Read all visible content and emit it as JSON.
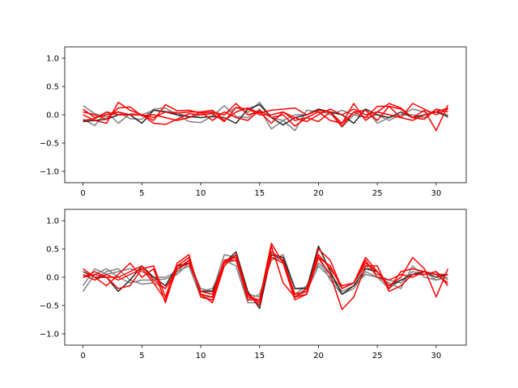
{
  "colors": {
    "gray": "#808080",
    "dark": "#262626",
    "red": "#ff0000"
  },
  "chart_data": [
    {
      "type": "line",
      "xlim": [
        -1.55,
        32.55
      ],
      "ylim": [
        -1.2,
        1.2
      ],
      "xticks": [
        0,
        5,
        10,
        15,
        20,
        25,
        30
      ],
      "xtick_labels": [
        "0",
        "5",
        "10",
        "15",
        "20",
        "25",
        "30"
      ],
      "yticks": [
        -1.0,
        -0.5,
        0.0,
        0.5,
        1.0
      ],
      "ytick_labels": [
        "−1.0",
        "−0.5",
        "0.0",
        "0.5",
        "1.0"
      ],
      "grid": false,
      "x": [
        0,
        1,
        2,
        3,
        4,
        5,
        6,
        7,
        8,
        9,
        10,
        11,
        12,
        13,
        14,
        15,
        16,
        17,
        18,
        19,
        20,
        21,
        22,
        23,
        24,
        25,
        26,
        27,
        28,
        29,
        30,
        31
      ],
      "series": [
        {
          "color": "gray",
          "values": [
            0.16,
            0.02,
            -0.04,
            0.05,
            -0.07,
            -0.08,
            0.1,
            0.12,
            0.0,
            -0.12,
            -0.14,
            -0.02,
            0.16,
            -0.03,
            -0.05,
            0.1,
            -0.25,
            -0.1,
            -0.28,
            0.08,
            0.05,
            0.03,
            -0.22,
            0.0,
            0.1,
            -0.15,
            -0.05,
            0.0,
            0.1,
            0.05,
            0.05,
            0.0
          ]
        },
        {
          "color": "gray",
          "values": [
            -0.08,
            -0.19,
            0.05,
            -0.15,
            0.02,
            0.0,
            0.08,
            0.06,
            0.04,
            -0.05,
            0.0,
            0.03,
            0.0,
            0.13,
            0.04,
            0.22,
            -0.05,
            -0.1,
            0.0,
            0.0,
            0.1,
            0.0,
            0.08,
            0.0,
            -0.05,
            0.0,
            -0.1,
            0.0,
            0.0,
            -0.05,
            0.1,
            -0.05
          ]
        },
        {
          "color": "dark",
          "values": [
            -0.12,
            -0.1,
            -0.08,
            0.0,
            0.0,
            -0.15,
            0.08,
            0.05,
            0.0,
            -0.03,
            -0.05,
            -0.03,
            -0.05,
            -0.15,
            0.1,
            0.18,
            -0.05,
            -0.18,
            -0.05,
            0.0,
            0.1,
            0.05,
            0.0,
            -0.15,
            0.1,
            0.0,
            -0.05,
            0.05,
            -0.05,
            0.0,
            0.05,
            -0.03
          ]
        },
        {
          "color": "red",
          "values": [
            0.1,
            -0.05,
            0.0,
            0.05,
            0.0,
            0.0,
            -0.05,
            0.05,
            0.03,
            0.05,
            0.05,
            0.08,
            -0.1,
            0.05,
            0.12,
            0.03,
            0.08,
            0.1,
            0.12,
            0.0,
            0.08,
            0.05,
            -0.15,
            0.2,
            -0.1,
            0.05,
            0.2,
            0.12,
            -0.05,
            0.08,
            -0.28,
            0.17
          ]
        },
        {
          "color": "red",
          "values": [
            0.0,
            -0.1,
            -0.15,
            0.22,
            0.08,
            0.0,
            -0.1,
            0.18,
            0.07,
            0.08,
            0.03,
            0.05,
            0.0,
            0.2,
            0.0,
            0.05,
            -0.15,
            0.05,
            -0.05,
            -0.12,
            0.0,
            0.1,
            0.0,
            0.1,
            0.0,
            0.05,
            0.0,
            -0.05,
            0.2,
            0.1,
            0.0,
            0.1
          ]
        },
        {
          "color": "red",
          "values": [
            0.05,
            0.0,
            -0.08,
            0.12,
            0.14,
            -0.02,
            0.0,
            -0.05,
            -0.1,
            -0.05,
            0.05,
            -0.1,
            0.05,
            -0.05,
            -0.1,
            0.08,
            -0.05,
            0.0,
            -0.2,
            -0.05,
            -0.12,
            0.05,
            -0.2,
            0.05,
            0.08,
            -0.1,
            0.15,
            0.1,
            -0.05,
            -0.08,
            0.1,
            0.05
          ]
        },
        {
          "color": "red",
          "values": [
            -0.1,
            -0.07,
            0.05,
            0.0,
            0.0,
            0.0,
            -0.15,
            -0.17,
            -0.08,
            0.02,
            0.0,
            0.02,
            -0.12,
            0.13,
            0.1,
            0.0,
            0.0,
            0.05,
            -0.1,
            -0.05,
            0.05,
            -0.1,
            -0.15,
            0.05,
            -0.05,
            0.15,
            0.15,
            -0.05,
            -0.1,
            0.0,
            0.05,
            0.12
          ]
        }
      ]
    },
    {
      "type": "line",
      "xlim": [
        -1.55,
        32.55
      ],
      "ylim": [
        -1.2,
        1.2
      ],
      "xticks": [
        0,
        5,
        10,
        15,
        20,
        25,
        30
      ],
      "xtick_labels": [
        "0",
        "5",
        "10",
        "15",
        "20",
        "25",
        "30"
      ],
      "yticks": [
        -1.0,
        -0.5,
        0.0,
        0.5,
        1.0
      ],
      "ytick_labels": [
        "−1.0",
        "−0.5",
        "0.0",
        "0.5",
        "1.0"
      ],
      "grid": false,
      "x": [
        0,
        1,
        2,
        3,
        4,
        5,
        6,
        7,
        8,
        9,
        10,
        11,
        12,
        13,
        14,
        15,
        16,
        17,
        18,
        19,
        20,
        21,
        22,
        23,
        24,
        25,
        26,
        27,
        28,
        29,
        30,
        31
      ],
      "series": [
        {
          "color": "gray",
          "values": [
            -0.25,
            0.05,
            0.15,
            0.0,
            -0.1,
            -0.05,
            -0.05,
            -0.03,
            0.05,
            0.25,
            -0.25,
            -0.2,
            0.25,
            0.3,
            -0.4,
            -0.3,
            0.3,
            0.4,
            -0.2,
            -0.18,
            0.35,
            -0.05,
            -0.3,
            -0.2,
            0.1,
            0.0,
            -0.1,
            -0.2,
            0.2,
            0.0,
            -0.05,
            0.0
          ]
        },
        {
          "color": "gray",
          "values": [
            -0.15,
            0.15,
            0.05,
            0.1,
            0.15,
            0.1,
            0.0,
            0.0,
            0.1,
            0.3,
            -0.2,
            -0.25,
            0.4,
            0.35,
            -0.3,
            -0.35,
            0.35,
            0.3,
            -0.3,
            -0.15,
            0.25,
            0.05,
            -0.2,
            -0.1,
            0.2,
            0.05,
            -0.05,
            -0.1,
            0.1,
            0.05,
            0.1,
            -0.05
          ]
        },
        {
          "color": "gray",
          "values": [
            0.05,
            -0.05,
            0.1,
            0.15,
            -0.05,
            -0.12,
            -0.1,
            -0.2,
            0.1,
            0.2,
            -0.35,
            -0.35,
            0.3,
            0.2,
            -0.45,
            -0.45,
            0.4,
            0.3,
            -0.35,
            -0.25,
            0.2,
            0.0,
            -0.25,
            -0.15,
            0.05,
            0.0,
            -0.2,
            -0.05,
            0.05,
            0.1,
            -0.05,
            0.05
          ]
        },
        {
          "color": "dark",
          "values": [
            0.1,
            0.0,
            0.0,
            -0.25,
            -0.05,
            0.2,
            0.0,
            -0.15,
            0.2,
            0.25,
            -0.25,
            -0.25,
            0.25,
            0.45,
            -0.25,
            -0.55,
            0.4,
            0.35,
            -0.2,
            -0.2,
            0.55,
            0.1,
            -0.3,
            -0.15,
            0.15,
            0.1,
            -0.15,
            -0.05,
            0.05,
            0.1,
            0.0,
            0.05
          ]
        },
        {
          "color": "red",
          "values": [
            0.15,
            0.0,
            -0.15,
            0.05,
            0.25,
            0.0,
            0.15,
            -0.45,
            0.2,
            0.35,
            -0.3,
            -0.45,
            0.2,
            0.4,
            -0.3,
            -0.5,
            0.55,
            -0.1,
            -0.35,
            -0.3,
            0.5,
            0.3,
            -0.2,
            -0.1,
            0.35,
            0.1,
            -0.15,
            0.0,
            0.35,
            0.15,
            -0.35,
            0.15
          ]
        },
        {
          "color": "red",
          "values": [
            0.0,
            0.1,
            0.0,
            -0.2,
            -0.15,
            0.15,
            0.2,
            -0.35,
            0.25,
            0.4,
            -0.35,
            -0.4,
            0.3,
            0.35,
            -0.4,
            -0.4,
            0.6,
            0.25,
            -0.35,
            -0.2,
            0.35,
            0.05,
            -0.57,
            -0.35,
            0.2,
            0.2,
            -0.25,
            -0.15,
            0.05,
            0.05,
            0.1,
            -0.15
          ]
        },
        {
          "color": "red",
          "values": [
            0.05,
            -0.05,
            0.05,
            -0.05,
            0.05,
            0.15,
            -0.1,
            -0.4,
            0.15,
            0.3,
            -0.3,
            -0.35,
            0.25,
            0.4,
            -0.35,
            -0.4,
            0.35,
            0.25,
            -0.4,
            -0.3,
            0.35,
            0.2,
            -0.2,
            -0.1,
            0.3,
            0.0,
            -0.05,
            0.05,
            0.0,
            0.1,
            0.05,
            -0.1
          ]
        },
        {
          "color": "red",
          "values": [
            0.0,
            0.05,
            0.0,
            0.0,
            0.1,
            0.2,
            -0.05,
            -0.2,
            0.15,
            0.25,
            -0.25,
            -0.3,
            0.3,
            0.3,
            -0.3,
            -0.45,
            0.45,
            0.3,
            -0.3,
            -0.25,
            0.4,
            0.15,
            -0.15,
            -0.1,
            0.25,
            0.1,
            -0.2,
            0.1,
            0.15,
            0.1,
            0.05,
            0.05
          ]
        }
      ]
    }
  ]
}
